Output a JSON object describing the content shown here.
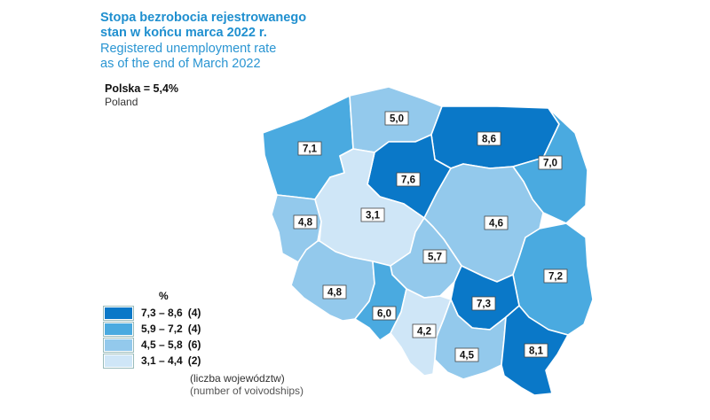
{
  "title": {
    "polish_line1": "Stopa bezrobocia rejestrowanego",
    "polish_line2": "stan w końcu marca 2022 r.",
    "english_line1": "Registered unemployment rate",
    "english_line2": "as of the end of March 2022"
  },
  "country": {
    "label_pl": "Polska = 5,4%",
    "label_en": "Poland"
  },
  "colors": {
    "class1": "#0a78c8",
    "class2": "#4aaae0",
    "class3": "#93c9ec",
    "class4": "#cfe6f7",
    "accent": "#1f8fcf"
  },
  "voivodeships": [
    {
      "id": "zachodniopomorskie",
      "value": "7,1",
      "class": 2
    },
    {
      "id": "pomorskie",
      "value": "5,0",
      "class": 3
    },
    {
      "id": "warminsko-mazurskie",
      "value": "8,6",
      "class": 1
    },
    {
      "id": "podlaskie",
      "value": "7,0",
      "class": 2
    },
    {
      "id": "kujawsko-pomorskie",
      "value": "7,6",
      "class": 1
    },
    {
      "id": "lubuskie",
      "value": "4,8",
      "class": 3
    },
    {
      "id": "wielkopolskie",
      "value": "3,1",
      "class": 4
    },
    {
      "id": "mazowieckie",
      "value": "4,6",
      "class": 3
    },
    {
      "id": "lodzkie",
      "value": "5,7",
      "class": 3
    },
    {
      "id": "lubelskie",
      "value": "7,2",
      "class": 2
    },
    {
      "id": "dolnoslaskie",
      "value": "4,8",
      "class": 3
    },
    {
      "id": "opolskie",
      "value": "6,0",
      "class": 2
    },
    {
      "id": "swietokrzyskie",
      "value": "7,3",
      "class": 1
    },
    {
      "id": "slaskie",
      "value": "4,2",
      "class": 4
    },
    {
      "id": "malopolskie",
      "value": "4,5",
      "class": 3
    },
    {
      "id": "podkarpackie",
      "value": "8,1",
      "class": 1
    }
  ],
  "legend": {
    "unit": "%",
    "items": [
      {
        "range": "7,3 – 8,6",
        "count": "(4)",
        "color": "#0a78c8"
      },
      {
        "range": "5,9 – 7,2",
        "count": "(4)",
        "color": "#4aaae0"
      },
      {
        "range": "4,5 – 5,8",
        "count": "(6)",
        "color": "#93c9ec"
      },
      {
        "range": "3,1 – 4,4",
        "count": "(2)",
        "color": "#cfe6f7"
      }
    ],
    "note_pl": "(liczba województw)",
    "note_en": "(number of voivodships)"
  }
}
